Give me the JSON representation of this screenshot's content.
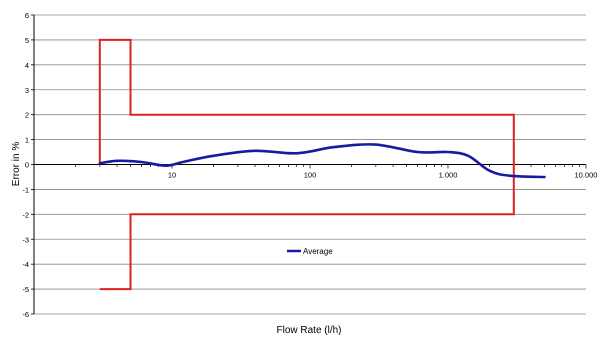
{
  "chart_data": {
    "type": "line",
    "xlabel": "Flow Rate (l/h)",
    "ylabel": "Error in %",
    "x_scale": "log",
    "xlim": [
      1,
      10000
    ],
    "ylim": [
      -6,
      6
    ],
    "x_ticks": [
      {
        "value": 10,
        "label": "10"
      },
      {
        "value": 100,
        "label": "100"
      },
      {
        "value": 1000,
        "label": "1.000"
      },
      {
        "value": 10000,
        "label": "10.000"
      }
    ],
    "y_ticks": [
      6,
      5,
      4,
      3,
      2,
      1,
      0,
      -1,
      -2,
      -3,
      -4,
      -5,
      -6
    ],
    "grid": "horizontal",
    "legend_position": "center",
    "series": [
      {
        "name": "Average",
        "color": "#1a1aa0",
        "x": [
          3,
          4,
          6,
          9,
          12,
          20,
          40,
          80,
          150,
          300,
          600,
          1000,
          1400,
          2000,
          2800,
          5000
        ],
        "y": [
          0.05,
          0.15,
          0.1,
          -0.05,
          0.1,
          0.35,
          0.55,
          0.45,
          0.7,
          0.8,
          0.5,
          0.5,
          0.35,
          -0.25,
          -0.45,
          -0.5
        ]
      }
    ],
    "limit_envelope": {
      "color": "#dd2222",
      "x": [
        3,
        3,
        5,
        5,
        3000,
        3000,
        5,
        5,
        3
      ],
      "y": [
        0,
        5,
        5,
        2,
        2,
        -2,
        -2,
        -5,
        -5
      ]
    }
  }
}
